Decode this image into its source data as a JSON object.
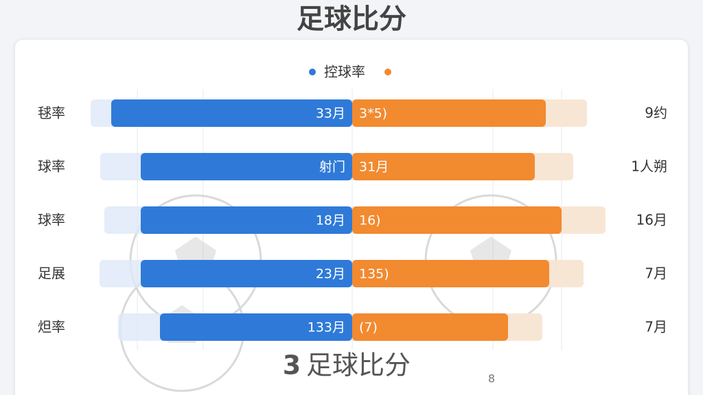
{
  "header": {
    "title": "足球比分"
  },
  "legend": {
    "label": "控球率"
  },
  "rows": [
    {
      "label": "毬率",
      "left": "33月",
      "right": "3*5)",
      "side": "9约"
    },
    {
      "label": "球率",
      "left": "射门",
      "right": "31月",
      "side": "1人朔"
    },
    {
      "label": "球率",
      "left": "18月",
      "right": "16)",
      "side": "16月"
    },
    {
      "label": "足展",
      "left": "23月",
      "right": "135)",
      "side": "7月"
    },
    {
      "label": "炟率",
      "left": "133月",
      "right": "(7)",
      "side": "7月"
    }
  ],
  "footer": {
    "title": "足球比分",
    "mark": "3",
    "note": "8"
  }
}
